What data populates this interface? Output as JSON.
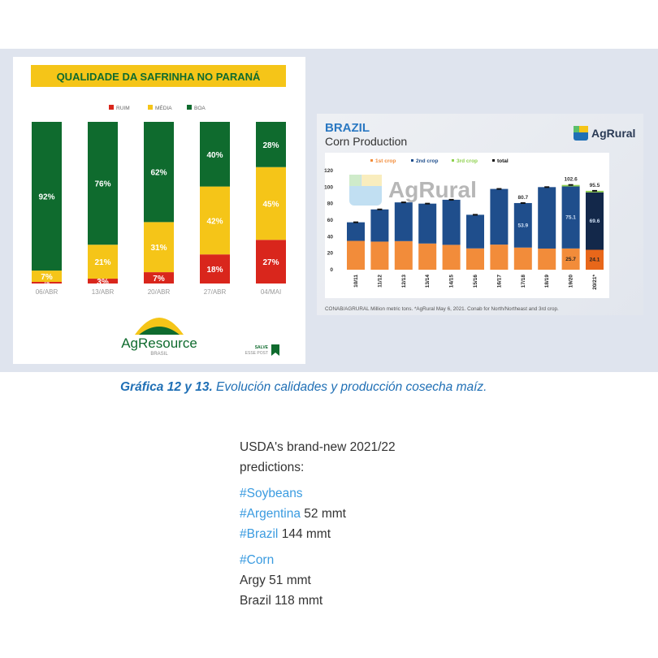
{
  "chart_data": [
    {
      "type": "bar",
      "stacked": true,
      "title": "QUALIDADE DA SAFRINHA NO PARANÁ",
      "categories": [
        "06/ABR",
        "13/ABR",
        "20/ABR",
        "27/ABR",
        "04/MAI"
      ],
      "series": [
        {
          "name": "RUIM",
          "color": "#d9261c",
          "values": [
            1,
            3,
            7,
            18,
            27
          ]
        },
        {
          "name": "MÉDIA",
          "color": "#f5c518",
          "values": [
            7,
            21,
            31,
            42,
            45
          ]
        },
        {
          "name": "BOA",
          "color": "#0f6b2e",
          "values": [
            92,
            76,
            62,
            40,
            28
          ]
        }
      ],
      "ylim": [
        0,
        100
      ],
      "unit": "%",
      "legend": "top-center",
      "logo": "AgResource",
      "logo_sub": "BRASIL",
      "save_label": "SALVE",
      "save_sub": "ESSE POST"
    },
    {
      "type": "bar",
      "stacked": true,
      "title": "BRAZIL",
      "subtitle": "Corn Production",
      "logo": "AgRural",
      "watermark": "AgRural",
      "categories": [
        "10/11",
        "11/12",
        "12/13",
        "13/14",
        "14/15",
        "15/16",
        "16/17",
        "17/18",
        "18/19",
        "19/20",
        "20/21*"
      ],
      "series": [
        {
          "name": "1st crop",
          "color": "#f28c3a",
          "values": [
            34.9,
            34.0,
            34.6,
            31.7,
            30.1,
            25.8,
            30.4,
            26.8,
            25.6,
            25.7,
            24.1
          ]
        },
        {
          "name": "2nd crop",
          "color": "#1f4e8c",
          "values": [
            22.5,
            39.0,
            46.9,
            48.3,
            54.6,
            40.7,
            67.4,
            53.9,
            74.4,
            75.1,
            69.6
          ]
        },
        {
          "name": "3rd crop",
          "color": "#8fd14f",
          "values": [
            0,
            0,
            0,
            0,
            0,
            0,
            0,
            0,
            0,
            1.8,
            1.8
          ]
        }
      ],
      "totals": [
        57.4,
        73.0,
        81.5,
        80.0,
        84.7,
        66.5,
        97.8,
        80.7,
        100.0,
        102.6,
        95.5
      ],
      "total_label": "total",
      "data_labels": {
        "totals": [
          "",
          "",
          "",
          "",
          "",
          "",
          "",
          "80.7",
          "",
          "102.6",
          "95.5"
        ],
        "second": [
          "",
          "",
          "",
          "",
          "",
          "",
          "",
          "53.9",
          "",
          "75.1",
          "69.6"
        ],
        "first": [
          "",
          "",
          "",
          "",
          "",
          "",
          "",
          "",
          "",
          "25.7",
          "24.1"
        ]
      },
      "yticks": [
        0,
        20,
        40,
        60,
        80,
        100,
        120
      ],
      "ylim": [
        0,
        120
      ],
      "legend": "top",
      "source": "CONAB/AGRURAL  Million metric tons. *AgRural May 6, 2021. Conab for North/Northeast and 3rd crop."
    }
  ],
  "caption": {
    "bold": "Gráfica 12 y 13.",
    "text": " Evolución calidades y producción cosecha maíz."
  },
  "tweet": {
    "line1": "USDA's brand-new 2021/22",
    "line2": "predictions:",
    "soy_tag": "#Soybeans",
    "arg_tag": "#Argentina",
    "arg_soy": " 52 mmt",
    "bra_tag": "#Brazil",
    "bra_soy": " 144 mmt",
    "corn_tag": "#Corn",
    "argy_corn": "Argy 51 mmt",
    "bra_corn": "Brazil 118 mmt"
  }
}
